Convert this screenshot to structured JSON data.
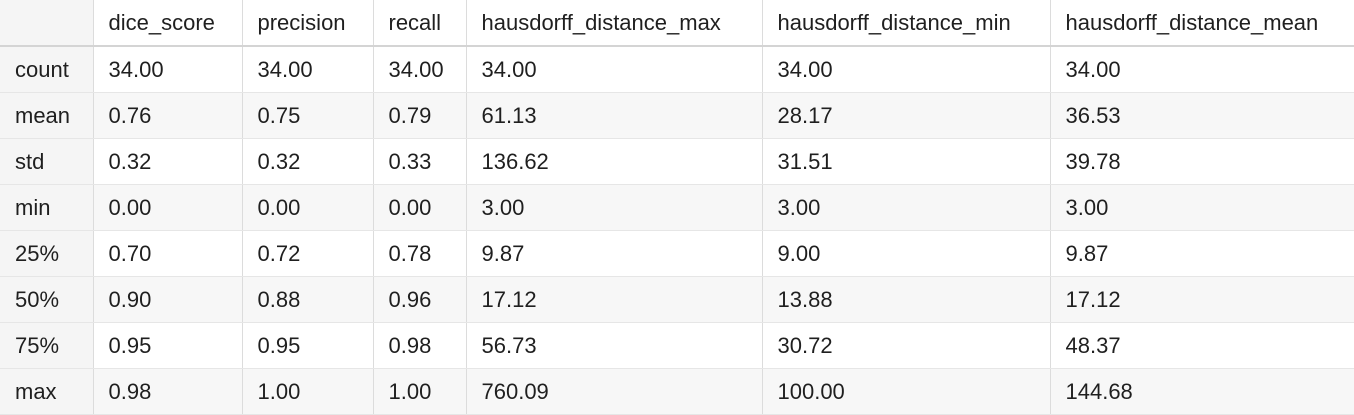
{
  "table": {
    "columns": [
      "dice_score",
      "precision",
      "recall",
      "hausdorff_distance_max",
      "hausdorff_distance_min",
      "hausdorff_distance_mean"
    ],
    "rows": [
      {
        "label": "count",
        "values": [
          "34.00",
          "34.00",
          "34.00",
          "34.00",
          "34.00",
          "34.00"
        ]
      },
      {
        "label": "mean",
        "values": [
          "0.76",
          "0.75",
          "0.79",
          "61.13",
          "28.17",
          "36.53"
        ]
      },
      {
        "label": "std",
        "values": [
          "0.32",
          "0.32",
          "0.33",
          "136.62",
          "31.51",
          "39.78"
        ]
      },
      {
        "label": "min",
        "values": [
          "0.00",
          "0.00",
          "0.00",
          "3.00",
          "3.00",
          "3.00"
        ]
      },
      {
        "label": "25%",
        "values": [
          "0.70",
          "0.72",
          "0.78",
          "9.87",
          "9.00",
          "9.87"
        ]
      },
      {
        "label": "50%",
        "values": [
          "0.90",
          "0.88",
          "0.96",
          "17.12",
          "13.88",
          "17.12"
        ]
      },
      {
        "label": "75%",
        "values": [
          "0.95",
          "0.95",
          "0.98",
          "56.73",
          "30.72",
          "48.37"
        ]
      },
      {
        "label": "max",
        "values": [
          "0.98",
          "1.00",
          "1.00",
          "760.09",
          "100.00",
          "144.68"
        ]
      }
    ]
  }
}
